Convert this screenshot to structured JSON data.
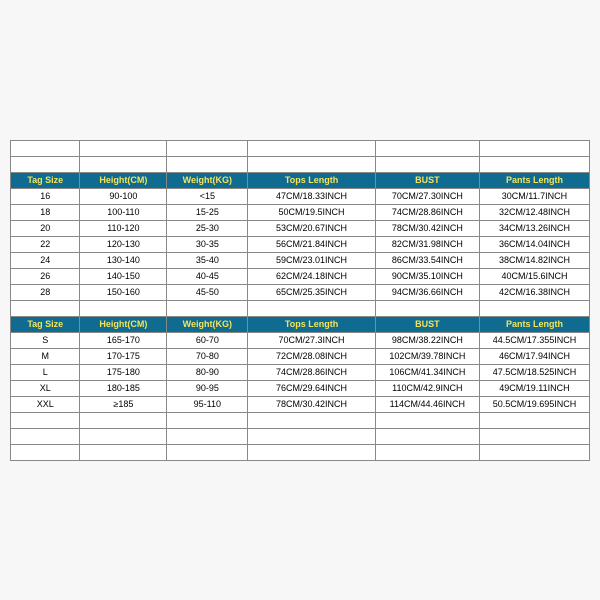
{
  "header_bg": "#0f6b8f",
  "header_fg": "#f5e45a",
  "columns": [
    "Tag Size",
    "Height(CM)",
    "Weight(KG)",
    "Tops Length",
    "BUST",
    "Pants Length"
  ],
  "col_widths": [
    "12%",
    "15%",
    "14%",
    "22%",
    "18%",
    "19%"
  ],
  "tables": [
    {
      "rows": [
        [
          "16",
          "90-100",
          "<15",
          "47CM/18.33INCH",
          "70CM/27.30INCH",
          "30CM/11.7INCH"
        ],
        [
          "18",
          "100-110",
          "15-25",
          "50CM/19.5INCH",
          "74CM/28.86INCH",
          "32CM/12.48INCH"
        ],
        [
          "20",
          "110-120",
          "25-30",
          "53CM/20.67INCH",
          "78CM/30.42INCH",
          "34CM/13.26INCH"
        ],
        [
          "22",
          "120-130",
          "30-35",
          "56CM/21.84INCH",
          "82CM/31.98INCH",
          "36CM/14.04INCH"
        ],
        [
          "24",
          "130-140",
          "35-40",
          "59CM/23.01INCH",
          "86CM/33.54INCH",
          "38CM/14.82INCH"
        ],
        [
          "26",
          "140-150",
          "40-45",
          "62CM/24.18INCH",
          "90CM/35.10INCH",
          "40CM/15.6INCH"
        ],
        [
          "28",
          "150-160",
          "45-50",
          "65CM/25.35INCH",
          "94CM/36.66INCH",
          "42CM/16.38INCH"
        ]
      ]
    },
    {
      "rows": [
        [
          "S",
          "165-170",
          "60-70",
          "70CM/27.3INCH",
          "98CM/38.22INCH",
          "44.5CM/17.355INCH"
        ],
        [
          "M",
          "170-175",
          "70-80",
          "72CM/28.08INCH",
          "102CM/39.78INCH",
          "46CM/17.94INCH"
        ],
        [
          "L",
          "175-180",
          "80-90",
          "74CM/28.86INCH",
          "106CM/41.34INCH",
          "47.5CM/18.525INCH"
        ],
        [
          "XL",
          "180-185",
          "90-95",
          "76CM/29.64INCH",
          "110CM/42.9INCH",
          "49CM/19.11INCH"
        ],
        [
          "XXL",
          "≥185",
          "95-110",
          "78CM/30.42INCH",
          "114CM/44.46INCH",
          "50.5CM/19.695INCH"
        ]
      ]
    }
  ]
}
